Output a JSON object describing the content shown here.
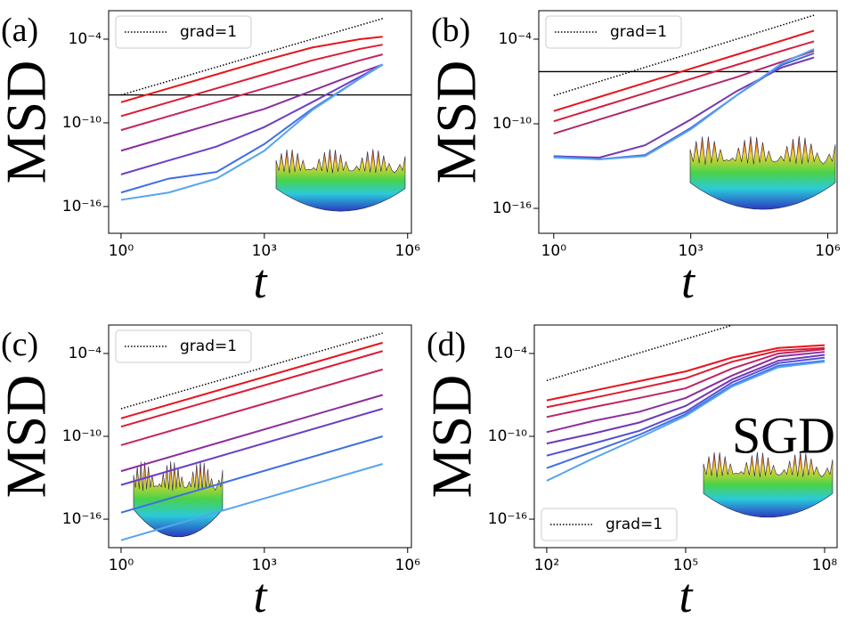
{
  "chart_data": [
    {
      "type": "line",
      "panel_label": "(a)",
      "ylabel": "MSD",
      "xlabel": "t",
      "log_x": true,
      "log_y": true,
      "xlim": [
        0.55,
        1200000
      ],
      "ylim": [
        1.2e-18,
        0.011
      ],
      "xticks": [
        {
          "value": 1,
          "label": "10⁰"
        },
        {
          "value": 1000,
          "label": "10³"
        },
        {
          "value": 1000000,
          "label": "10⁶"
        }
      ],
      "yticks": [
        {
          "value": 0.0001,
          "label": "10⁻⁴"
        },
        {
          "value": 1e-10,
          "label": "10⁻¹⁰"
        },
        {
          "value": 1e-16,
          "label": "10⁻¹⁶"
        }
      ],
      "legend": "upper left",
      "hline": 1e-08,
      "x": [
        1,
        10,
        100,
        1000,
        10000,
        100000,
        300000
      ],
      "series": [
        {
          "name": "grad=1",
          "color": "#000000",
          "linestyle": "dotted",
          "values": [
            1e-08,
            1e-07,
            1e-06,
            1e-05,
            0.0001,
            0.001,
            0.003
          ]
        },
        {
          "color": "#e8141c",
          "values": [
            3e-09,
            3e-08,
            3e-07,
            3e-06,
            2.5e-05,
            0.0001,
            0.00015
          ]
        },
        {
          "color": "#dc1c34",
          "values": [
            3e-10,
            3e-09,
            3e-08,
            3e-07,
            3e-06,
            2e-05,
            4e-05
          ]
        },
        {
          "color": "#c8245a",
          "values": [
            3e-11,
            3e-10,
            3e-09,
            3e-08,
            3e-07,
            3e-06,
            8e-06
          ]
        },
        {
          "color": "#8c2e9c",
          "values": [
            1e-12,
            1e-11,
            1e-10,
            1e-09,
            2e-08,
            4e-07,
            1.5e-06
          ]
        },
        {
          "color": "#6a40c8",
          "values": [
            2e-14,
            2e-13,
            2e-12,
            5e-11,
            3e-09,
            2e-07,
            1.5e-06
          ]
        },
        {
          "color": "#3f6fe6",
          "values": [
            1e-15,
            1e-14,
            3e-14,
            3e-12,
            1e-09,
            1.5e-07,
            1.5e-06
          ]
        },
        {
          "color": "#56a4f2",
          "values": [
            3e-16,
            1e-15,
            1e-14,
            1e-12,
            8e-10,
            1.5e-07,
            1.6e-06
          ]
        }
      ]
    },
    {
      "type": "line",
      "panel_label": "(b)",
      "ylabel": "MSD",
      "xlabel": "t",
      "log_x": true,
      "log_y": true,
      "xlim": [
        0.47,
        1600000
      ],
      "ylim": [
        1.7e-18,
        0.0105
      ],
      "xticks": [
        {
          "value": 1,
          "label": "10⁰"
        },
        {
          "value": 1000,
          "label": "10³"
        },
        {
          "value": 1000000,
          "label": "10⁶"
        }
      ],
      "yticks": [
        {
          "value": 0.0001,
          "label": "10⁻⁴"
        },
        {
          "value": 1e-10,
          "label": "10⁻¹⁰"
        },
        {
          "value": 1e-16,
          "label": "10⁻¹⁶"
        }
      ],
      "legend": "upper left",
      "hline": 5e-07,
      "x": [
        1,
        10,
        100,
        1000,
        10000,
        100000,
        500000
      ],
      "series": [
        {
          "name": "grad=1",
          "color": "#000000",
          "linestyle": "dotted",
          "values": [
            1e-08,
            1e-07,
            1e-06,
            1e-05,
            0.0001,
            0.001,
            0.005
          ]
        },
        {
          "color": "#e8141c",
          "values": [
            8e-10,
            8e-09,
            8e-08,
            8e-07,
            8e-06,
            8e-05,
            0.0004
          ]
        },
        {
          "color": "#d42040",
          "values": [
            1.5e-10,
            1.5e-09,
            1.5e-08,
            1.5e-07,
            1.5e-06,
            1.5e-05,
            7e-05
          ]
        },
        {
          "color": "#b0286c",
          "values": [
            2e-11,
            2e-10,
            2e-09,
            2e-08,
            2e-07,
            2.5e-06,
            1.5e-05
          ]
        },
        {
          "color": "#7438b0",
          "values": [
            5e-13,
            4e-13,
            3e-12,
            2e-10,
            2e-08,
            1e-06,
            5e-06
          ]
        },
        {
          "color": "#4a62dc",
          "values": [
            5e-13,
            3e-13,
            6e-13,
            5e-11,
            1e-08,
            1.5e-06,
            1e-05
          ]
        },
        {
          "color": "#56a4f2",
          "values": [
            4e-13,
            3e-13,
            5e-13,
            4e-11,
            1e-08,
            2e-06,
            2e-05
          ]
        }
      ]
    },
    {
      "type": "line",
      "panel_label": "(c)",
      "ylabel": "MSD",
      "xlabel": "t",
      "log_x": true,
      "log_y": true,
      "xlim": [
        0.55,
        1200000
      ],
      "ylim": [
        8.7e-19,
        0.0115
      ],
      "xticks": [
        {
          "value": 1,
          "label": "10⁰"
        },
        {
          "value": 1000,
          "label": "10³"
        },
        {
          "value": 1000000,
          "label": "10⁶"
        }
      ],
      "yticks": [
        {
          "value": 0.0001,
          "label": "10⁻⁴"
        },
        {
          "value": 1e-10,
          "label": "10⁻¹⁰"
        },
        {
          "value": 1e-16,
          "label": "10⁻¹⁶"
        }
      ],
      "legend": "upper left",
      "x": [
        1,
        300000
      ],
      "series": [
        {
          "name": "grad=1",
          "color": "#000000",
          "linestyle": "dotted",
          "values": [
            1e-08,
            0.003
          ]
        },
        {
          "color": "#e8141c",
          "values": [
            2e-09,
            0.0006
          ]
        },
        {
          "color": "#dc1c34",
          "values": [
            5e-10,
            0.00015
          ]
        },
        {
          "color": "#c8245a",
          "values": [
            2.3e-11,
            7e-06
          ]
        },
        {
          "color": "#8c2e9c",
          "values": [
            3e-13,
            1e-07
          ]
        },
        {
          "color": "#6a40c8",
          "values": [
            3e-14,
            1e-08
          ]
        },
        {
          "color": "#3f6fe6",
          "values": [
            3e-16,
            1e-10
          ]
        },
        {
          "color": "#56a4f2",
          "values": [
            3e-18,
            1e-12
          ]
        }
      ]
    },
    {
      "type": "line",
      "panel_label": "(d)",
      "ylabel": "MSD",
      "xlabel": "t",
      "log_x": true,
      "log_y": true,
      "xlim": [
        54,
        186000000
      ],
      "ylim": [
        8.7e-19,
        0.0115
      ],
      "xticks": [
        {
          "value": 100,
          "label": "10²"
        },
        {
          "value": 100000,
          "label": "10⁵"
        },
        {
          "value": 100000000,
          "label": "10⁸"
        }
      ],
      "yticks": [
        {
          "value": 0.0001,
          "label": "10⁻⁴"
        },
        {
          "value": 1e-10,
          "label": "10⁻¹⁰"
        },
        {
          "value": 1e-16,
          "label": "10⁻¹⁶"
        }
      ],
      "legend": "lower left",
      "annotation": "SGD",
      "x": [
        100,
        1000,
        10000,
        100000,
        1000000,
        10000000,
        100000000
      ],
      "series": [
        {
          "name": "grad=1",
          "color": "#000000",
          "linestyle": "dotted",
          "values": [
            1.1e-06,
            1.1e-05,
            0.00011,
            0.0011,
            0.011,
            null,
            null
          ]
        },
        {
          "color": "#e8141c",
          "values": [
            4e-08,
            2e-07,
            1e-06,
            5e-06,
            5e-05,
            0.00025,
            0.0004
          ]
        },
        {
          "color": "#dc1c34",
          "values": [
            1.3e-08,
            6e-08,
            3e-07,
            1.6e-06,
            2.5e-05,
            0.00016,
            0.00025
          ]
        },
        {
          "color": "#c02460",
          "values": [
            2.5e-09,
            1.3e-08,
            6e-08,
            3e-07,
            8e-06,
            0.0001,
            0.0002
          ]
        },
        {
          "color": "#8c2e9c",
          "values": [
            2e-10,
            1.3e-09,
            6e-09,
            6e-08,
            2.5e-06,
            6e-05,
            0.00013
          ]
        },
        {
          "color": "#7038b8",
          "values": [
            3e-11,
            1.6e-10,
            1e-09,
            1.6e-08,
            1.3e-06,
            3e-05,
            8e-05
          ]
        },
        {
          "color": "#5450d4",
          "values": [
            4e-12,
            3e-11,
            2.5e-10,
            6e-09,
            8e-07,
            2e-05,
            5e-05
          ]
        },
        {
          "color": "#3f6fe6",
          "values": [
            5e-13,
            8e-12,
            1.3e-10,
            4e-09,
            5e-07,
            1.3e-05,
            3e-05
          ]
        },
        {
          "color": "#56a4f2",
          "values": [
            6e-14,
            2.5e-12,
            8e-11,
            3e-09,
            4e-07,
            1e-05,
            2.5e-05
          ]
        }
      ]
    }
  ]
}
